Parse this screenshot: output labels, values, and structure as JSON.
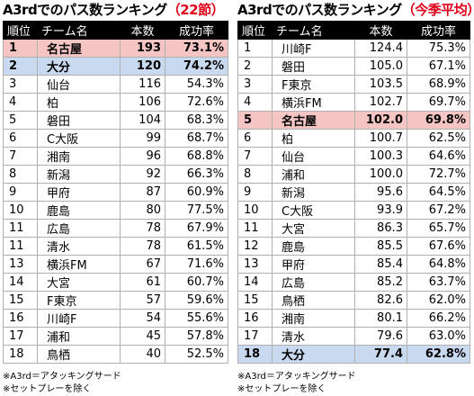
{
  "left": {
    "title_main": "A3rdでのパス数ランキング",
    "title_accent": "（22節）",
    "headers": [
      "順位",
      "チーム名",
      "本数",
      "成功率"
    ],
    "rows": [
      {
        "rank": "1",
        "team": "名古屋",
        "count": "193",
        "rate": "73.1%",
        "highlight": "pink"
      },
      {
        "rank": "2",
        "team": "大分",
        "count": "120",
        "rate": "74.2%",
        "highlight": "blue"
      },
      {
        "rank": "3",
        "team": "仙台",
        "count": "116",
        "rate": "54.3%",
        "highlight": ""
      },
      {
        "rank": "4",
        "team": "柏",
        "count": "106",
        "rate": "72.6%",
        "highlight": ""
      },
      {
        "rank": "5",
        "team": "磐田",
        "count": "104",
        "rate": "68.3%",
        "highlight": ""
      },
      {
        "rank": "6",
        "team": "C大阪",
        "count": "99",
        "rate": "68.7%",
        "highlight": ""
      },
      {
        "rank": "7",
        "team": "湘南",
        "count": "96",
        "rate": "68.8%",
        "highlight": ""
      },
      {
        "rank": "8",
        "team": "新潟",
        "count": "92",
        "rate": "66.3%",
        "highlight": ""
      },
      {
        "rank": "9",
        "team": "甲府",
        "count": "87",
        "rate": "60.9%",
        "highlight": ""
      },
      {
        "rank": "10",
        "team": "鹿島",
        "count": "80",
        "rate": "77.5%",
        "highlight": ""
      },
      {
        "rank": "11",
        "team": "広島",
        "count": "78",
        "rate": "67.9%",
        "highlight": ""
      },
      {
        "rank": "11",
        "team": "清水",
        "count": "78",
        "rate": "61.5%",
        "highlight": ""
      },
      {
        "rank": "13",
        "team": "横浜FM",
        "count": "67",
        "rate": "71.6%",
        "highlight": ""
      },
      {
        "rank": "14",
        "team": "大宮",
        "count": "61",
        "rate": "60.7%",
        "highlight": ""
      },
      {
        "rank": "15",
        "team": "F東京",
        "count": "57",
        "rate": "59.6%",
        "highlight": ""
      },
      {
        "rank": "16",
        "team": "川崎F",
        "count": "54",
        "rate": "55.6%",
        "highlight": ""
      },
      {
        "rank": "17",
        "team": "浦和",
        "count": "45",
        "rate": "57.8%",
        "highlight": ""
      },
      {
        "rank": "18",
        "team": "鳥栖",
        "count": "40",
        "rate": "52.5%",
        "highlight": ""
      }
    ],
    "notes": [
      "※A3rd＝アタッキングサード",
      "※セットプレーを除く"
    ]
  },
  "right": {
    "title_main": "A3rdでのパス数ランキング",
    "title_accent": "（今季平均）",
    "headers": [
      "順位",
      "チーム名",
      "本数",
      "成功率"
    ],
    "rows": [
      {
        "rank": "1",
        "team": "川崎F",
        "count": "124.4",
        "rate": "75.3%",
        "highlight": ""
      },
      {
        "rank": "2",
        "team": "磐田",
        "count": "105.0",
        "rate": "67.1%",
        "highlight": ""
      },
      {
        "rank": "3",
        "team": "F東京",
        "count": "103.5",
        "rate": "68.9%",
        "highlight": ""
      },
      {
        "rank": "4",
        "team": "横浜FM",
        "count": "102.7",
        "rate": "69.7%",
        "highlight": ""
      },
      {
        "rank": "5",
        "team": "名古屋",
        "count": "102.0",
        "rate": "69.8%",
        "highlight": "pink"
      },
      {
        "rank": "6",
        "team": "柏",
        "count": "100.7",
        "rate": "62.5%",
        "highlight": ""
      },
      {
        "rank": "7",
        "team": "仙台",
        "count": "100.3",
        "rate": "64.6%",
        "highlight": ""
      },
      {
        "rank": "8",
        "team": "浦和",
        "count": "100.0",
        "rate": "72.7%",
        "highlight": ""
      },
      {
        "rank": "9",
        "team": "新潟",
        "count": "95.6",
        "rate": "64.5%",
        "highlight": ""
      },
      {
        "rank": "10",
        "team": "C大阪",
        "count": "93.9",
        "rate": "67.2%",
        "highlight": ""
      },
      {
        "rank": "11",
        "team": "大宮",
        "count": "86.3",
        "rate": "65.7%",
        "highlight": ""
      },
      {
        "rank": "12",
        "team": "鹿島",
        "count": "85.5",
        "rate": "67.6%",
        "highlight": ""
      },
      {
        "rank": "13",
        "team": "甲府",
        "count": "85.4",
        "rate": "64.8%",
        "highlight": ""
      },
      {
        "rank": "14",
        "team": "広島",
        "count": "85.2",
        "rate": "63.7%",
        "highlight": ""
      },
      {
        "rank": "15",
        "team": "鳥栖",
        "count": "82.6",
        "rate": "62.0%",
        "highlight": ""
      },
      {
        "rank": "16",
        "team": "湘南",
        "count": "80.1",
        "rate": "66.2%",
        "highlight": ""
      },
      {
        "rank": "17",
        "team": "清水",
        "count": "79.6",
        "rate": "63.0%",
        "highlight": ""
      },
      {
        "rank": "18",
        "team": "大分",
        "count": "77.4",
        "rate": "62.8%",
        "highlight": "blue"
      }
    ],
    "notes": [
      "※A3rd＝アタッキングサード",
      "※セットプレーを除く"
    ]
  }
}
